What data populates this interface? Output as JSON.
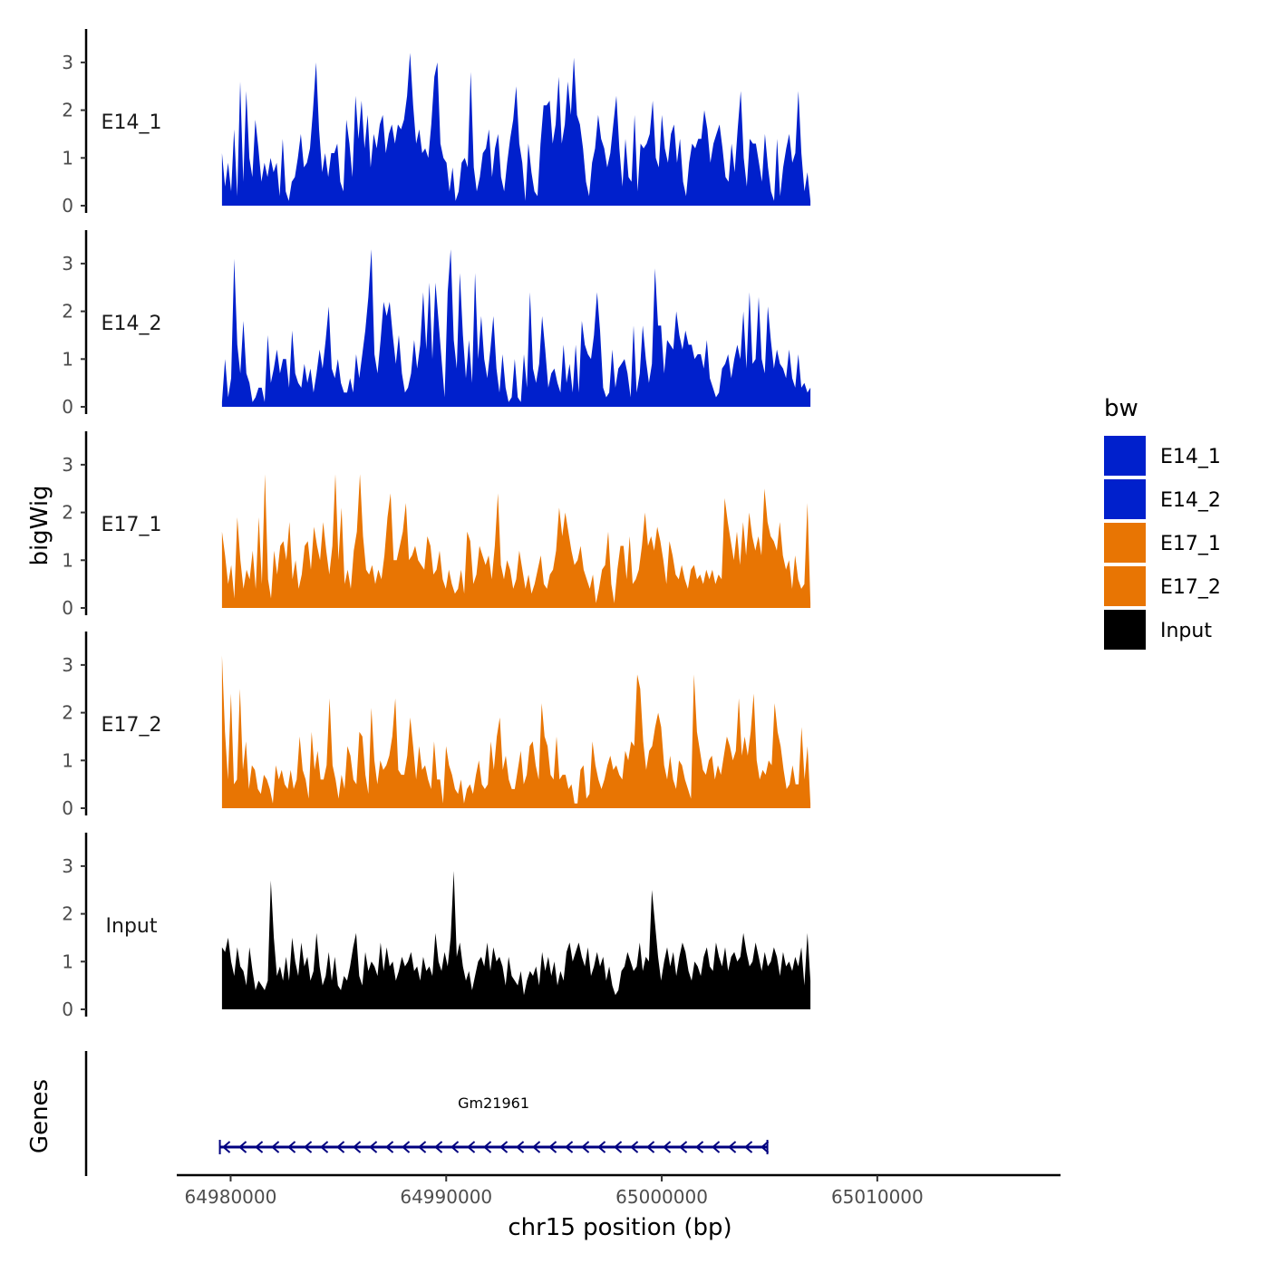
{
  "chart_data": {
    "type": "area",
    "title": "",
    "xlabel": "chr15 position (bp)",
    "ylabel": "bigWig",
    "genes_track_label": "Genes",
    "xlim": [
      64977500,
      65018500
    ],
    "x_range_data": [
      64979600,
      65006900
    ],
    "ylim": [
      0,
      3.7
    ],
    "y_ticks": [
      0,
      1,
      2,
      3
    ],
    "x_ticks": [
      64980000,
      64990000,
      65000000,
      65010000
    ],
    "x_tick_labels": [
      "64980000",
      "64990000",
      "65000000",
      "65010000"
    ],
    "legend": {
      "title": "bw",
      "position": "right",
      "entries": [
        {
          "label": "E14_1",
          "color": "#0020CC"
        },
        {
          "label": "E14_2",
          "color": "#0020CC"
        },
        {
          "label": "E17_1",
          "color": "#E87503"
        },
        {
          "label": "E17_2",
          "color": "#E87503"
        },
        {
          "label": "Input",
          "color": "#000000"
        }
      ]
    },
    "series": [
      {
        "name": "E14_1",
        "color": "#0020CC",
        "values": [
          1.1,
          0.4,
          0.9,
          0.3,
          1.6,
          0.2,
          2.6,
          0.5,
          2.4,
          1.0,
          0.6,
          1.8,
          1.2,
          0.5,
          0.9,
          0.6,
          1.0,
          0.7,
          0.9,
          0.2,
          1.4,
          0.3,
          0.1,
          0.5,
          0.6,
          1.0,
          1.5,
          0.8,
          0.9,
          1.2,
          2.0,
          3.0,
          1.6,
          0.7,
          1.1,
          0.6,
          1.1,
          1.1,
          1.3,
          0.5,
          0.3,
          1.8,
          1.3,
          0.6,
          2.3,
          1.4,
          2.2,
          1.2,
          1.9,
          0.8,
          1.5,
          1.2,
          1.7,
          1.9,
          1.1,
          1.5,
          1.7,
          1.3,
          1.7,
          1.6,
          1.8,
          2.3,
          3.2,
          2.1,
          1.3,
          1.6,
          1.1,
          1.2,
          1.0,
          1.7,
          2.7,
          3.0,
          1.3,
          1.0,
          0.9,
          0.3,
          0.8,
          0.1,
          0.3,
          0.9,
          1.0,
          0.8,
          2.8,
          0.8,
          0.3,
          0.6,
          1.1,
          1.2,
          1.6,
          0.6,
          1.2,
          1.5,
          0.6,
          0.3,
          0.9,
          1.4,
          1.8,
          2.5,
          1.3,
          0.9,
          0.1,
          1.3,
          0.7,
          0.3,
          0.2,
          1.3,
          2.1,
          2.1,
          2.2,
          1.3,
          1.7,
          2.7,
          1.3,
          1.7,
          2.6,
          1.9,
          3.1,
          1.9,
          1.7,
          1.2,
          0.5,
          0.2,
          0.9,
          1.2,
          1.9,
          1.4,
          1.2,
          0.8,
          1.1,
          1.7,
          2.3,
          1.2,
          0.4,
          1.4,
          0.6,
          0.5,
          1.9,
          0.3,
          1.3,
          1.2,
          1.3,
          1.5,
          2.2,
          1.0,
          0.8,
          1.9,
          1.2,
          0.9,
          1.5,
          1.7,
          0.9,
          1.4,
          0.5,
          0.2,
          0.9,
          1.3,
          1.2,
          1.4,
          1.4,
          2.0,
          1.6,
          0.9,
          1.3,
          1.5,
          1.7,
          1.2,
          0.6,
          0.5,
          1.3,
          0.7,
          1.6,
          2.4,
          1.0,
          0.4,
          1.4,
          1.3,
          1.3,
          0.9,
          0.5,
          1.5,
          0.8,
          0.3,
          0.1,
          1.4,
          0.2,
          0.8,
          1.2,
          1.5,
          0.9,
          1.1,
          2.4,
          1.1,
          0.3,
          0.7,
          0.1
        ]
      },
      {
        "name": "E14_2",
        "color": "#0020CC",
        "values": [
          0.1,
          1.0,
          0.2,
          0.6,
          3.1,
          1.3,
          0.7,
          1.8,
          0.7,
          0.5,
          0.1,
          0.2,
          0.4,
          0.4,
          0.1,
          1.5,
          0.5,
          0.8,
          1.2,
          0.7,
          1.0,
          1.0,
          0.4,
          1.6,
          0.7,
          0.5,
          0.4,
          0.9,
          0.5,
          0.8,
          0.3,
          0.7,
          1.2,
          0.8,
          1.4,
          2.1,
          0.8,
          0.6,
          1.0,
          0.5,
          0.3,
          0.3,
          0.6,
          0.3,
          1.1,
          0.6,
          1.1,
          1.6,
          2.3,
          3.3,
          1.1,
          0.7,
          1.4,
          2.2,
          1.9,
          2.2,
          1.5,
          0.9,
          1.5,
          0.7,
          0.3,
          0.4,
          0.7,
          1.4,
          0.8,
          1.3,
          2.4,
          1.2,
          2.6,
          1.0,
          2.6,
          1.8,
          1.0,
          0.2,
          2.4,
          3.3,
          1.4,
          0.8,
          2.8,
          1.5,
          0.6,
          1.4,
          0.5,
          2.8,
          1.0,
          1.9,
          1.0,
          0.6,
          1.2,
          1.9,
          0.8,
          0.3,
          1.1,
          0.4,
          0.1,
          0.2,
          1.0,
          0.2,
          0.1,
          1.1,
          0.4,
          2.4,
          0.8,
          0.5,
          0.9,
          1.9,
          1.2,
          0.4,
          0.7,
          0.8,
          0.5,
          0.3,
          1.3,
          0.5,
          0.9,
          0.3,
          1.3,
          0.3,
          1.8,
          1.3,
          1.1,
          1.0,
          1.5,
          2.4,
          1.6,
          0.4,
          0.2,
          0.3,
          1.2,
          0.4,
          0.8,
          0.9,
          1.0,
          0.7,
          0.2,
          1.7,
          0.3,
          0.7,
          1.7,
          1.0,
          0.5,
          0.9,
          2.9,
          1.7,
          1.7,
          0.7,
          1.4,
          1.3,
          1.2,
          2.0,
          1.5,
          1.2,
          1.6,
          1.3,
          1.3,
          1.0,
          1.1,
          1.1,
          0.8,
          1.4,
          0.6,
          0.4,
          0.2,
          0.3,
          0.8,
          0.9,
          1.1,
          0.6,
          1.0,
          1.3,
          1.0,
          2.0,
          0.8,
          2.4,
          0.9,
          1.0,
          2.3,
          1.0,
          0.7,
          2.1,
          1.4,
          0.8,
          1.2,
          0.9,
          0.8,
          0.6,
          1.2,
          0.6,
          0.4,
          1.1,
          0.4,
          0.5,
          0.3,
          0.4
        ]
      },
      {
        "name": "E17_1",
        "color": "#E87503",
        "values": [
          1.6,
          1.1,
          0.5,
          0.9,
          0.2,
          1.9,
          1.0,
          0.4,
          0.8,
          0.6,
          1.2,
          0.4,
          1.9,
          0.5,
          2.8,
          0.6,
          0.2,
          1.2,
          0.7,
          1.3,
          1.4,
          1.0,
          1.8,
          0.6,
          1.0,
          0.4,
          0.7,
          1.3,
          1.4,
          0.8,
          1.7,
          1.3,
          1.0,
          1.8,
          1.2,
          0.7,
          1.3,
          2.8,
          1.0,
          2.1,
          0.5,
          0.8,
          0.4,
          1.2,
          1.6,
          2.8,
          1.5,
          0.8,
          0.7,
          0.9,
          0.5,
          0.8,
          0.6,
          1.1,
          1.9,
          2.4,
          1.0,
          1.0,
          1.3,
          1.6,
          2.2,
          1.0,
          1.1,
          1.3,
          1.0,
          0.9,
          0.8,
          1.5,
          1.3,
          0.7,
          0.8,
          1.2,
          0.6,
          0.4,
          0.8,
          0.5,
          0.3,
          0.4,
          0.8,
          0.3,
          1.6,
          1.4,
          0.5,
          0.7,
          1.3,
          1.1,
          0.9,
          1.1,
          0.6,
          1.3,
          2.4,
          0.9,
          0.6,
          1.0,
          0.8,
          0.4,
          0.6,
          1.2,
          0.8,
          0.4,
          0.7,
          0.3,
          0.5,
          0.8,
          1.1,
          0.5,
          0.4,
          0.7,
          0.8,
          1.2,
          2.1,
          1.5,
          2.0,
          1.6,
          1.2,
          0.9,
          1.0,
          1.3,
          0.8,
          0.6,
          0.4,
          0.7,
          0.1,
          0.4,
          0.8,
          0.9,
          1.6,
          0.5,
          0.1,
          0.8,
          1.3,
          1.3,
          0.6,
          1.5,
          0.5,
          0.6,
          0.8,
          1.3,
          2.0,
          1.3,
          1.5,
          1.2,
          1.7,
          1.4,
          1.0,
          0.5,
          1.4,
          1.1,
          0.7,
          0.6,
          0.9,
          0.6,
          0.4,
          0.8,
          0.9,
          0.6,
          0.7,
          0.5,
          0.8,
          0.6,
          0.8,
          0.5,
          0.7,
          0.6,
          2.3,
          1.8,
          1.4,
          1.0,
          1.6,
          0.9,
          1.8,
          1.1,
          2.0,
          1.5,
          1.2,
          1.5,
          1.1,
          2.5,
          1.8,
          1.5,
          1.4,
          1.2,
          1.8,
          1.1,
          0.8,
          1.0,
          0.4,
          1.1,
          0.6,
          0.4,
          0.5,
          2.2,
          0.1
        ]
      },
      {
        "name": "E17_2",
        "color": "#E87503",
        "values": [
          3.2,
          1.6,
          0.6,
          2.4,
          0.5,
          0.6,
          2.5,
          0.8,
          1.4,
          0.4,
          0.9,
          0.8,
          0.4,
          0.3,
          0.7,
          0.6,
          0.4,
          0.1,
          0.9,
          0.6,
          0.8,
          0.5,
          0.4,
          0.8,
          0.4,
          0.6,
          1.5,
          0.8,
          0.6,
          0.2,
          1.6,
          0.8,
          1.2,
          0.6,
          0.6,
          0.9,
          2.3,
          0.9,
          0.6,
          0.2,
          0.7,
          0.4,
          1.3,
          1.1,
          0.6,
          0.5,
          1.6,
          1.5,
          0.7,
          0.3,
          2.1,
          1.0,
          0.5,
          1.0,
          0.8,
          0.9,
          1.1,
          1.5,
          2.3,
          0.8,
          0.7,
          0.7,
          1.1,
          1.9,
          1.3,
          0.6,
          1.3,
          0.8,
          0.9,
          0.6,
          0.4,
          1.4,
          0.6,
          0.6,
          0.1,
          1.3,
          0.9,
          0.7,
          0.4,
          0.3,
          0.6,
          0.1,
          0.4,
          0.5,
          0.3,
          0.7,
          1.0,
          0.5,
          0.4,
          0.5,
          1.4,
          0.8,
          1.5,
          1.9,
          0.8,
          1.1,
          0.6,
          0.4,
          0.4,
          0.8,
          1.2,
          0.5,
          0.7,
          1.3,
          1.4,
          0.9,
          0.6,
          2.2,
          1.5,
          1.3,
          0.7,
          0.6,
          1.5,
          0.6,
          0.7,
          0.7,
          0.4,
          0.5,
          0.1,
          0.1,
          0.8,
          0.9,
          0.2,
          0.3,
          1.4,
          0.9,
          0.6,
          0.4,
          0.6,
          0.9,
          1.1,
          0.8,
          0.9,
          0.7,
          0.6,
          1.2,
          1.0,
          1.4,
          1.3,
          2.8,
          2.5,
          1.4,
          0.8,
          1.2,
          1.3,
          1.7,
          2.0,
          1.7,
          0.9,
          0.6,
          1.1,
          0.6,
          0.4,
          1.0,
          0.9,
          0.6,
          0.4,
          0.2,
          2.8,
          1.6,
          1.2,
          0.8,
          0.7,
          1.0,
          1.1,
          0.6,
          0.9,
          0.7,
          1.1,
          1.5,
          1.3,
          1.0,
          1.2,
          2.3,
          1.1,
          1.5,
          1.1,
          1.6,
          2.4,
          1.0,
          0.6,
          0.8,
          0.7,
          1.0,
          0.9,
          2.2,
          1.6,
          1.3,
          0.8,
          0.4,
          0.5,
          0.9,
          0.5,
          0.5,
          1.7,
          0.6,
          1.3,
          0.1
        ]
      },
      {
        "name": "Input",
        "color": "#000000",
        "values": [
          1.3,
          1.2,
          1.5,
          1.0,
          0.7,
          1.3,
          0.9,
          0.8,
          0.5,
          1.3,
          0.8,
          0.4,
          0.6,
          0.5,
          0.4,
          0.6,
          2.7,
          1.5,
          0.7,
          0.9,
          0.6,
          1.1,
          0.6,
          1.5,
          1.0,
          0.7,
          1.4,
          0.9,
          1.1,
          0.6,
          0.8,
          1.6,
          0.9,
          0.5,
          0.7,
          1.2,
          0.6,
          1.1,
          0.5,
          0.4,
          0.7,
          0.6,
          0.9,
          1.3,
          1.6,
          0.7,
          0.5,
          1.2,
          0.8,
          1.0,
          0.9,
          0.7,
          1.4,
          0.8,
          1.3,
          0.9,
          1.0,
          0.6,
          0.8,
          1.1,
          0.9,
          1.0,
          1.2,
          0.8,
          0.9,
          0.6,
          1.1,
          0.8,
          0.9,
          0.7,
          1.6,
          1.0,
          0.8,
          1.2,
          0.9,
          1.5,
          2.9,
          1.1,
          1.4,
          0.9,
          0.6,
          0.8,
          0.4,
          0.7,
          1.0,
          1.1,
          0.9,
          1.4,
          0.8,
          1.3,
          1.0,
          1.1,
          0.9,
          0.5,
          1.1,
          0.7,
          0.6,
          0.5,
          0.8,
          0.3,
          0.6,
          0.8,
          0.7,
          0.9,
          0.5,
          1.2,
          0.8,
          1.1,
          0.7,
          1.0,
          0.5,
          0.8,
          0.6,
          1.2,
          1.4,
          1.0,
          1.2,
          1.4,
          1.1,
          0.9,
          1.3,
          0.7,
          0.9,
          1.2,
          0.9,
          1.1,
          0.6,
          0.9,
          0.5,
          0.3,
          0.4,
          0.8,
          0.9,
          1.2,
          1.0,
          0.8,
          0.9,
          1.4,
          0.8,
          1.1,
          1.0,
          2.5,
          1.8,
          1.1,
          0.6,
          1.0,
          1.3,
          0.9,
          1.2,
          0.7,
          1.1,
          1.4,
          1.2,
          0.8,
          0.6,
          1.0,
          0.9,
          0.7,
          1.1,
          1.3,
          0.9,
          0.8,
          1.4,
          1.1,
          0.9,
          1.3,
          0.8,
          1.1,
          1.2,
          1.0,
          1.1,
          1.6,
          1.2,
          0.9,
          1.0,
          1.4,
          1.1,
          0.8,
          1.2,
          0.9,
          1.0,
          1.3,
          1.1,
          0.7,
          1.2,
          0.9,
          1.0,
          0.8,
          1.1,
          0.9,
          1.3,
          0.5,
          1.6,
          0.6
        ]
      }
    ],
    "gene": {
      "name": "Gm21961",
      "start": 64979500,
      "end": 65004900,
      "strand": "-",
      "color": "#000080"
    }
  }
}
